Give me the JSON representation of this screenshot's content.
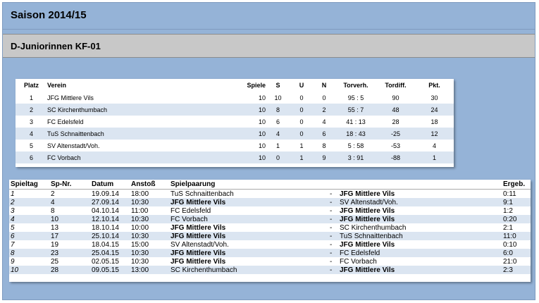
{
  "header": {
    "season": "Saison 2014/15",
    "league": "D-Juniorinnen  KF-01"
  },
  "standings": {
    "columns": [
      "Platz",
      "Verein",
      "Spiele",
      "S",
      "U",
      "N",
      "Torverh.",
      "Tordiff.",
      "Pkt."
    ],
    "rows": [
      {
        "platz": "1",
        "verein": "JFG Mittlere Vils",
        "spiele": "10",
        "s": "10",
        "u": "0",
        "n": "0",
        "torverh": "95 : 5",
        "tordiff": "90",
        "pkt": "30"
      },
      {
        "platz": "2",
        "verein": "SC Kirchenthumbach",
        "spiele": "10",
        "s": "8",
        "u": "0",
        "n": "2",
        "torverh": "55 : 7",
        "tordiff": "48",
        "pkt": "24"
      },
      {
        "platz": "3",
        "verein": "FC Edelsfeld",
        "spiele": "10",
        "s": "6",
        "u": "0",
        "n": "4",
        "torverh": "41 : 13",
        "tordiff": "28",
        "pkt": "18"
      },
      {
        "platz": "4",
        "verein": "TuS Schnaittenbach",
        "spiele": "10",
        "s": "4",
        "u": "0",
        "n": "6",
        "torverh": "18 : 43",
        "tordiff": "-25",
        "pkt": "12"
      },
      {
        "platz": "5",
        "verein": "SV Altenstadt/Voh.",
        "spiele": "10",
        "s": "1",
        "u": "1",
        "n": "8",
        "torverh": "5 : 58",
        "tordiff": "-53",
        "pkt": "4"
      },
      {
        "platz": "6",
        "verein": "FC Vorbach",
        "spiele": "10",
        "s": "0",
        "u": "1",
        "n": "9",
        "torverh": "3 : 91",
        "tordiff": "-88",
        "pkt": "1"
      }
    ]
  },
  "fixtures": {
    "columns": [
      "Spieltag",
      "Sp-Nr.",
      "Datum",
      "Anstoß",
      "Spielpaarung",
      "Ergeb."
    ],
    "separator": "-",
    "rows": [
      {
        "spieltag": "1",
        "spnr": "2",
        "datum": "19.09.14",
        "anstoss": "18:00",
        "home": "TuS Schnaittenbach",
        "away": "JFG Mittlere Vils",
        "ergeb": "0:11"
      },
      {
        "spieltag": "2",
        "spnr": "4",
        "datum": "27.09.14",
        "anstoss": "10:30",
        "home": "JFG Mittlere Vils",
        "away": "SV Altenstadt/Voh.",
        "ergeb": "9:1"
      },
      {
        "spieltag": "3",
        "spnr": "8",
        "datum": "04.10.14",
        "anstoss": "11:00",
        "home": "FC Edelsfeld",
        "away": "JFG Mittlere Vils",
        "ergeb": "1:2"
      },
      {
        "spieltag": "4",
        "spnr": "10",
        "datum": "12.10.14",
        "anstoss": "10:30",
        "home": "FC Vorbach",
        "away": "JFG Mittlere Vils",
        "ergeb": "0:20"
      },
      {
        "spieltag": "5",
        "spnr": "13",
        "datum": "18.10.14",
        "anstoss": "10:00",
        "home": "JFG Mittlere Vils",
        "away": "SC Kirchenthumbach",
        "ergeb": "2:1"
      },
      {
        "spieltag": "6",
        "spnr": "17",
        "datum": "25.10.14",
        "anstoss": "10:30",
        "home": "JFG Mittlere Vils",
        "away": "TuS Schnaittenbach",
        "ergeb": "11:0"
      },
      {
        "spieltag": "7",
        "spnr": "19",
        "datum": "18.04.15",
        "anstoss": "15:00",
        "home": "SV Altenstadt/Voh.",
        "away": "JFG Mittlere Vils",
        "ergeb": "0:10"
      },
      {
        "spieltag": "8",
        "spnr": "23",
        "datum": "25.04.15",
        "anstoss": "10:30",
        "home": "JFG Mittlere Vils",
        "away": "FC Edelsfeld",
        "ergeb": "6:0"
      },
      {
        "spieltag": "9",
        "spnr": "25",
        "datum": "02.05.15",
        "anstoss": "10:30",
        "home": "JFG Mittlere Vils",
        "away": "FC Vorbach",
        "ergeb": "21:0"
      },
      {
        "spieltag": "10",
        "spnr": "28",
        "datum": "09.05.15",
        "anstoss": "13:00",
        "home": "SC Kirchenthumbach",
        "away": "JFG Mittlere Vils",
        "ergeb": "2:3"
      }
    ]
  },
  "highlight_team": "JFG Mittlere Vils",
  "colors": {
    "background": "#95b3d7",
    "league_band": "#c8c8c8",
    "row_alt": "#dbe5f1"
  }
}
